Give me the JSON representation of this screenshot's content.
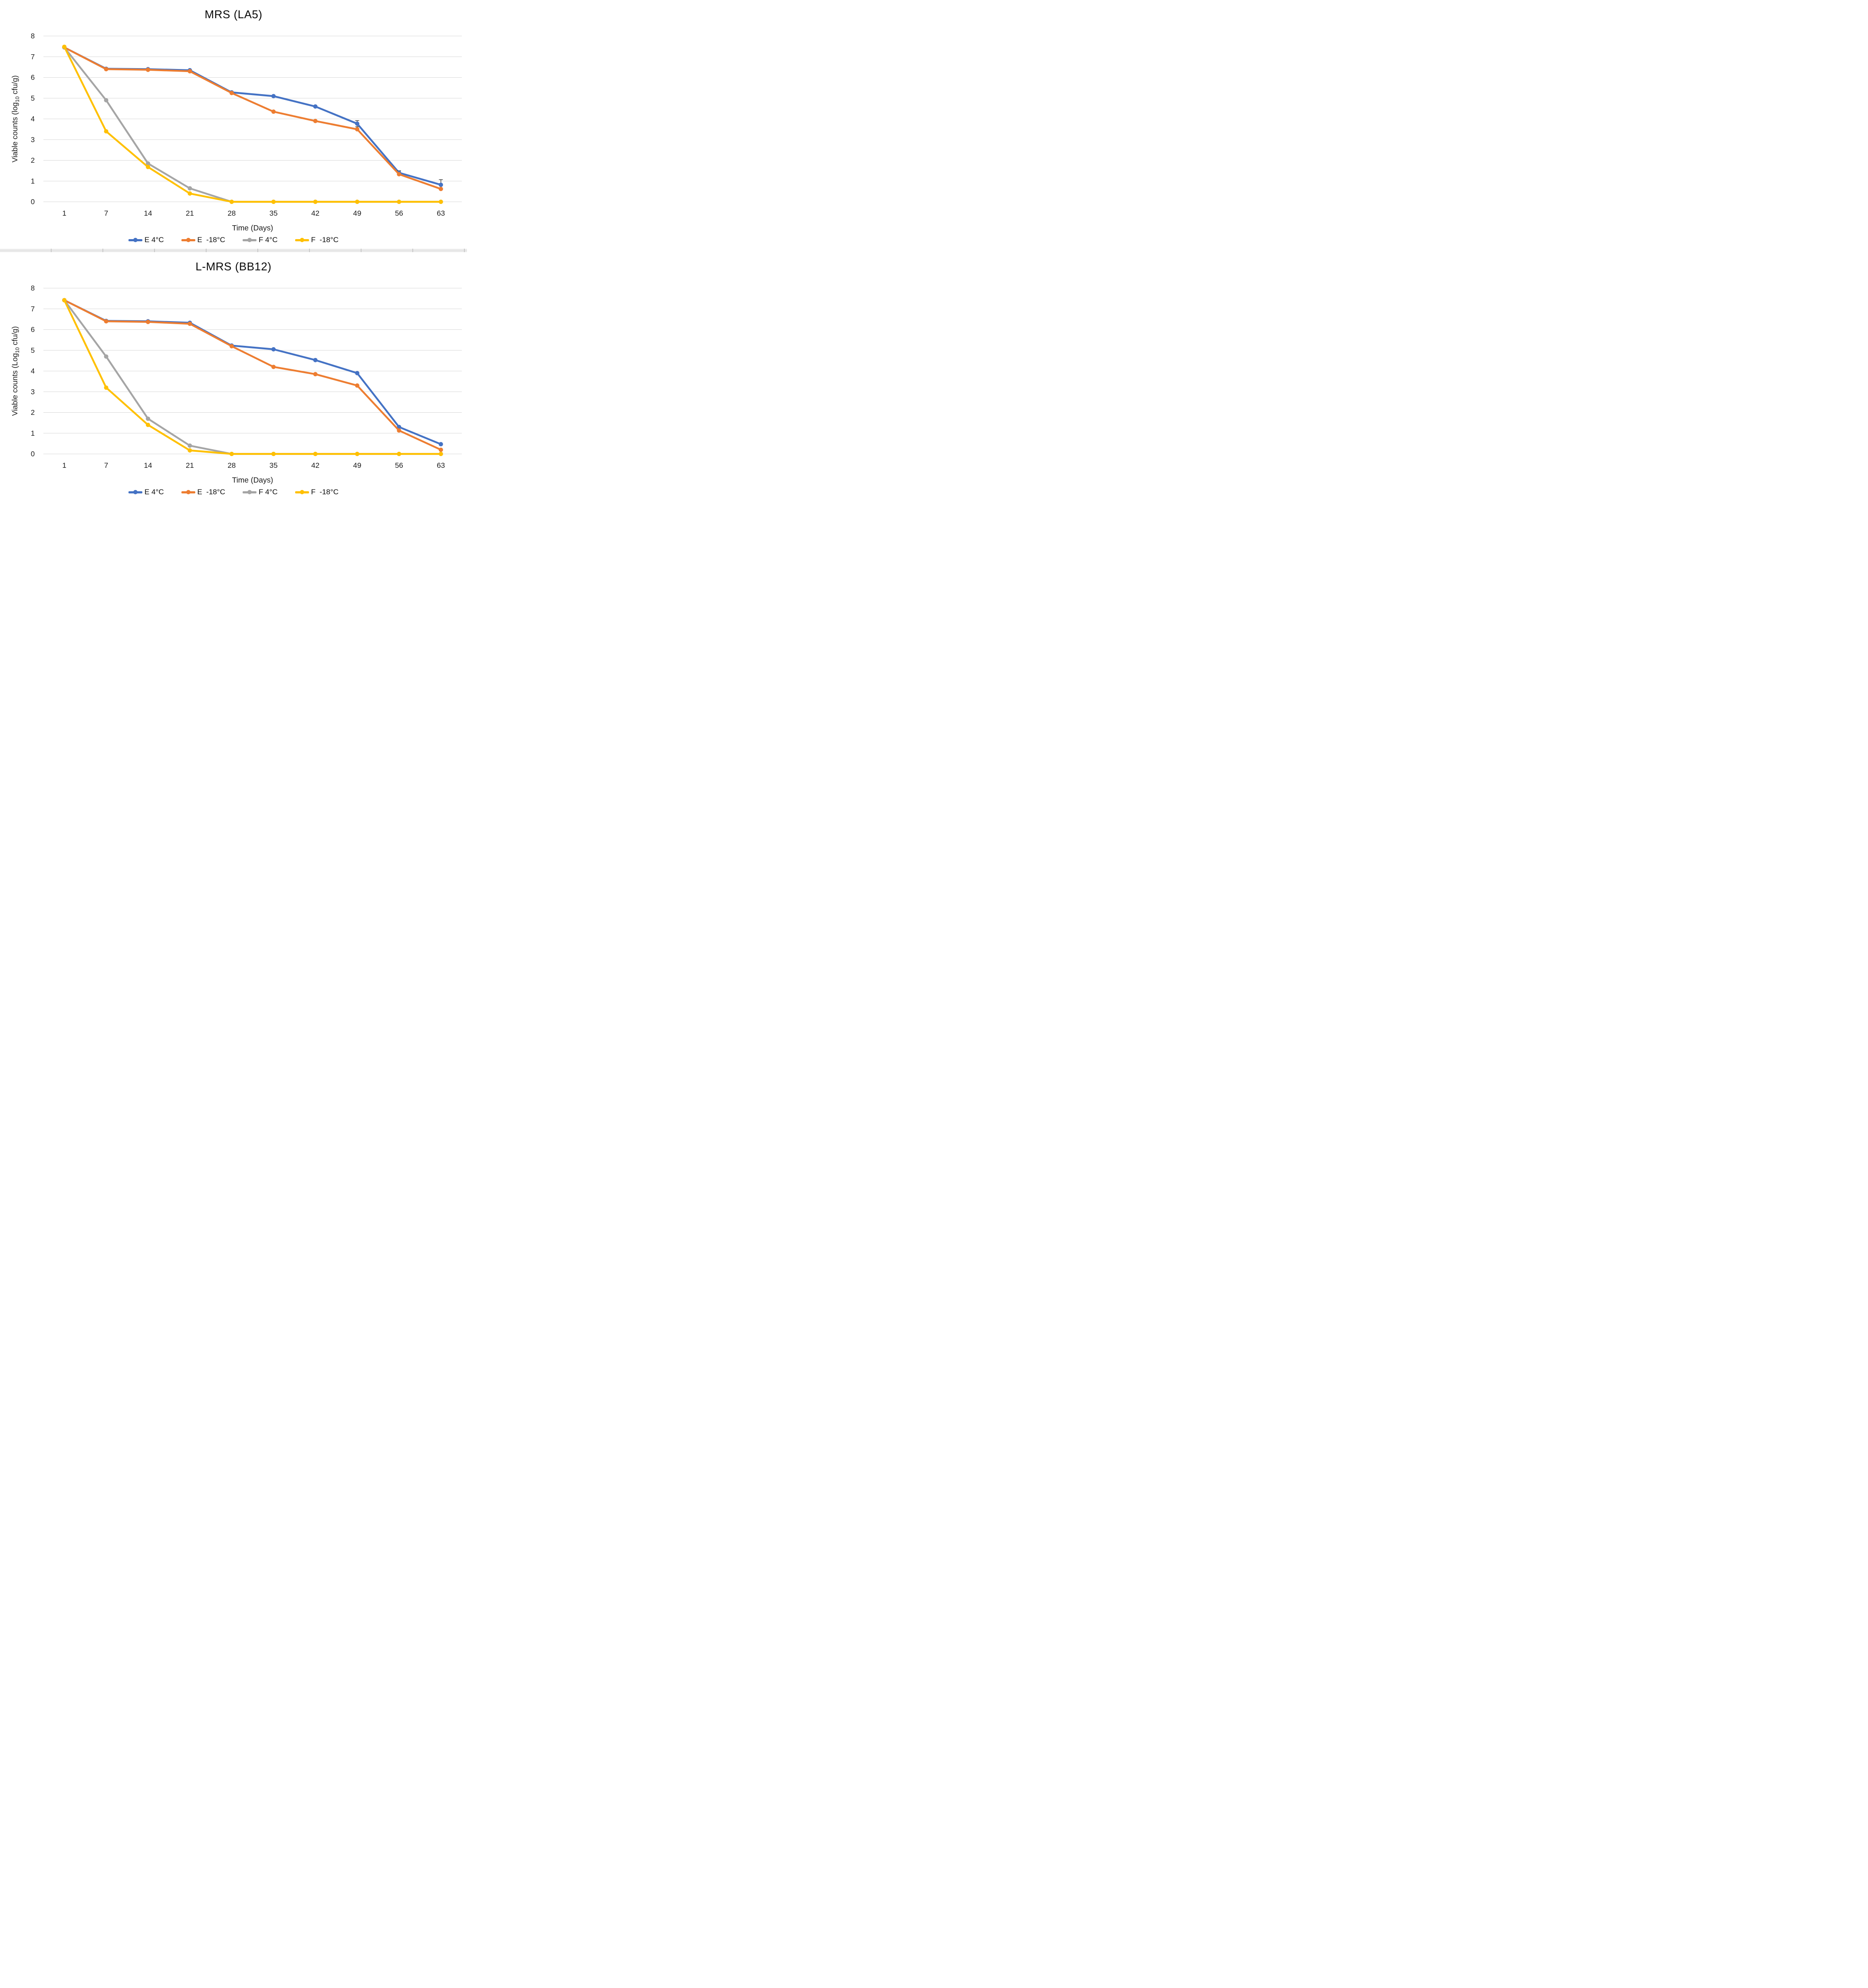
{
  "style": {
    "grid_color": "#d9d9d9",
    "text_color": "#1a1a1a",
    "error_bar_color": "#404040",
    "series_colors": {
      "E 4C": "#4472C4",
      "E -18C": "#ED7D31",
      "F 4C": "#A5A5A5",
      "F -18C": "#FFC000"
    }
  },
  "chart_data": [
    {
      "type": "line",
      "title": "MRS (LA5)",
      "ylabel_prefix": "Viable counts (log",
      "ylabel_sub": "10",
      "ylabel_suffix": " cfu/g)",
      "xlabel": "Time (Days)",
      "ylim": [
        0,
        8
      ],
      "yticks": [
        0,
        1,
        2,
        3,
        4,
        5,
        6,
        7,
        8
      ],
      "categories": [
        "1",
        "7",
        "14",
        "21",
        "28",
        "35",
        "42",
        "49",
        "56",
        "63"
      ],
      "grid": true,
      "legend_position": "bottom",
      "series": [
        {
          "name": "E 4°C",
          "color": "#4472C4",
          "values": [
            7.45,
            6.42,
            6.4,
            6.35,
            5.28,
            5.1,
            4.6,
            3.77,
            1.4,
            0.82
          ],
          "error_bars": [
            {
              "index": 7,
              "up": 0.15,
              "down": 0.15
            },
            {
              "index": 8,
              "up": 0.1,
              "down": 0.0
            },
            {
              "index": 9,
              "up": 0.25,
              "down": 0.0
            }
          ]
        },
        {
          "name": "E  -18°C",
          "color": "#ED7D31",
          "values": [
            7.45,
            6.4,
            6.37,
            6.3,
            5.25,
            4.35,
            3.9,
            3.5,
            1.33,
            0.62
          ],
          "error_bars": []
        },
        {
          "name": "F 4°C",
          "color": "#A5A5A5",
          "values": [
            7.45,
            4.9,
            1.85,
            0.65,
            0,
            0,
            0,
            0,
            0,
            0
          ],
          "error_bars": []
        },
        {
          "name": "F  -18°C",
          "color": "#FFC000",
          "values": [
            7.48,
            3.4,
            1.68,
            0.4,
            0,
            0,
            0,
            0,
            0,
            0
          ],
          "error_bars": []
        }
      ]
    },
    {
      "type": "line",
      "title": "L-MRS (BB12)",
      "ylabel_prefix": "Viable counts (Log",
      "ylabel_sub": "10",
      "ylabel_suffix": " cfu/g)",
      "xlabel": "Time (Days)",
      "ylim": [
        0,
        8
      ],
      "yticks": [
        0,
        1,
        2,
        3,
        4,
        5,
        6,
        7,
        8
      ],
      "categories": [
        "1",
        "7",
        "14",
        "21",
        "28",
        "35",
        "42",
        "49",
        "56",
        "63"
      ],
      "grid": true,
      "legend_position": "bottom",
      "series": [
        {
          "name": "E 4°C",
          "color": "#4472C4",
          "values": [
            7.42,
            6.42,
            6.4,
            6.33,
            5.23,
            5.05,
            4.53,
            3.9,
            1.3,
            0.47
          ],
          "error_bars": []
        },
        {
          "name": "E  -18°C",
          "color": "#ED7D31",
          "values": [
            7.42,
            6.4,
            6.37,
            6.28,
            5.2,
            4.2,
            3.85,
            3.3,
            1.13,
            0.2
          ],
          "error_bars": []
        },
        {
          "name": "F 4°C",
          "color": "#A5A5A5",
          "values": [
            7.42,
            4.7,
            1.7,
            0.4,
            0,
            0,
            0,
            0,
            0,
            0
          ],
          "error_bars": []
        },
        {
          "name": "F  -18°C",
          "color": "#FFC000",
          "values": [
            7.42,
            3.2,
            1.4,
            0.17,
            0,
            0,
            0,
            0,
            0,
            0
          ],
          "error_bars": []
        }
      ]
    }
  ]
}
